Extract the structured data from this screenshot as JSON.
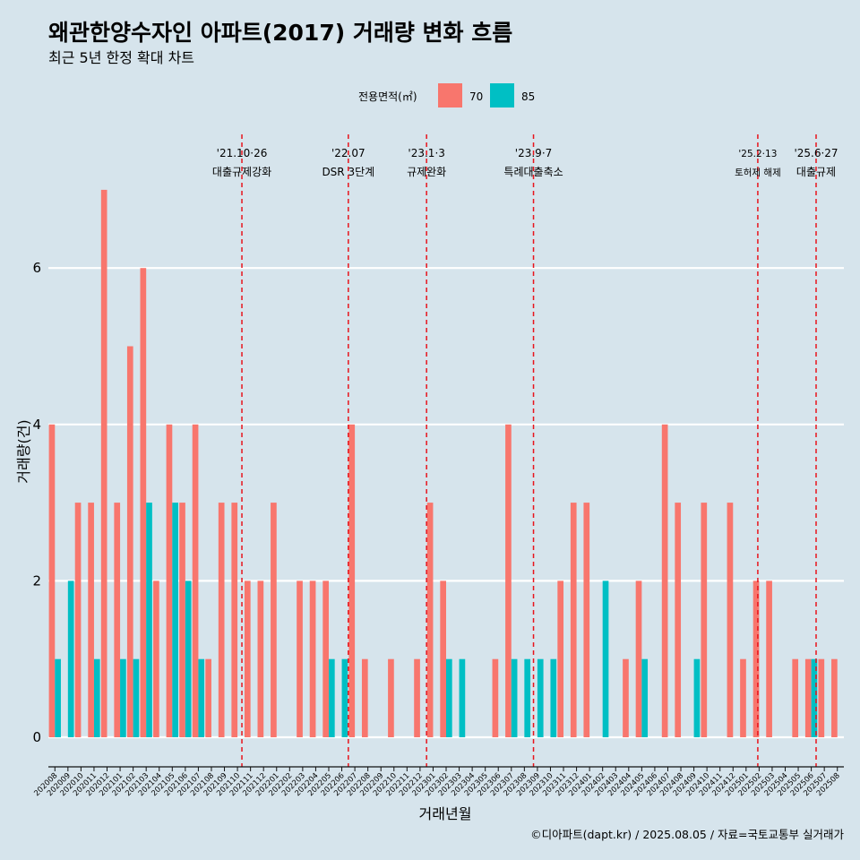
{
  "chart_data": {
    "type": "bar",
    "title": "왜관한양수자인 아파트(2017) 거래량 변화 흐름",
    "subtitle": "최근 5년 한정 확대 차트",
    "xlabel": "거래년월",
    "ylabel": "거래량(건)",
    "caption": "©디아파트(dapt.kr) / 2025.08.05 / 자료=국토교통부 실거래가",
    "legend": {
      "title": "전용면적(㎡)",
      "position": "top",
      "items": [
        {
          "label": "70",
          "color": "#F8766D"
        },
        {
          "label": "85",
          "color": "#00BFC4"
        }
      ]
    },
    "ylim": [
      0,
      7
    ],
    "yticks": [
      "0",
      "2",
      "4",
      "6"
    ],
    "grid": true,
    "categories": [
      "202008",
      "202009",
      "202010",
      "202011",
      "202012",
      "202101",
      "202102",
      "202103",
      "202104",
      "202105",
      "202106",
      "202107",
      "202108",
      "202109",
      "202110",
      "202111",
      "202112",
      "202201",
      "202202",
      "202203",
      "202204",
      "202205",
      "202206",
      "202207",
      "202208",
      "202209",
      "202210",
      "202211",
      "202212",
      "202301",
      "202302",
      "202303",
      "202304",
      "202305",
      "202306",
      "202307",
      "202308",
      "202309",
      "202310",
      "202311",
      "202312",
      "202401",
      "202402",
      "202403",
      "202404",
      "202405",
      "202406",
      "202407",
      "202408",
      "202409",
      "202410",
      "202411",
      "202412",
      "202501",
      "202502",
      "202503",
      "202504",
      "202505",
      "202506",
      "202507",
      "202508"
    ],
    "series": [
      {
        "name": "70",
        "color": "#F8766D",
        "values": [
          4,
          0,
          3,
          3,
          7,
          3,
          5,
          6,
          2,
          4,
          3,
          4,
          1,
          3,
          3,
          2,
          2,
          3,
          0,
          2,
          2,
          2,
          0,
          4,
          1,
          0,
          1,
          0,
          1,
          3,
          2,
          0,
          0,
          0,
          1,
          4,
          0,
          0,
          0,
          2,
          3,
          3,
          0,
          0,
          1,
          2,
          0,
          4,
          3,
          0,
          3,
          0,
          3,
          1,
          2,
          2,
          0,
          1,
          1,
          1,
          1
        ]
      },
      {
        "name": "85",
        "color": "#00BFC4",
        "values": [
          1,
          2,
          0,
          1,
          0,
          1,
          1,
          3,
          0,
          3,
          2,
          1,
          0,
          0,
          0,
          0,
          0,
          0,
          0,
          0,
          0,
          1,
          1,
          0,
          0,
          0,
          0,
          0,
          0,
          0,
          1,
          1,
          0,
          0,
          0,
          1,
          1,
          1,
          1,
          0,
          0,
          0,
          2,
          0,
          0,
          1,
          0,
          0,
          0,
          1,
          0,
          0,
          0,
          0,
          0,
          0,
          0,
          0,
          1,
          0,
          0
        ]
      }
    ],
    "events": [
      {
        "date": "'21.10·26",
        "label": "대출규제강화",
        "month": "202110",
        "offset": 0.84,
        "size": "normal"
      },
      {
        "date": "'22.07",
        "label": "DSR 3단계",
        "month": "202207",
        "offset": 0.0,
        "size": "normal"
      },
      {
        "date": "'23.1·3",
        "label": "규제완화",
        "month": "202301",
        "offset": 0.0,
        "size": "normal"
      },
      {
        "date": "'23.9·7",
        "label": "특례대출축소",
        "month": "202309",
        "offset": 0.2,
        "size": "normal"
      },
      {
        "date": "'25.2·13",
        "label": "토허제 해제",
        "month": "202502",
        "offset": 0.4,
        "size": "small"
      },
      {
        "date": "'25.6·27",
        "label": "대출규제",
        "month": "202506",
        "offset": 0.87,
        "size": "normal"
      }
    ]
  }
}
